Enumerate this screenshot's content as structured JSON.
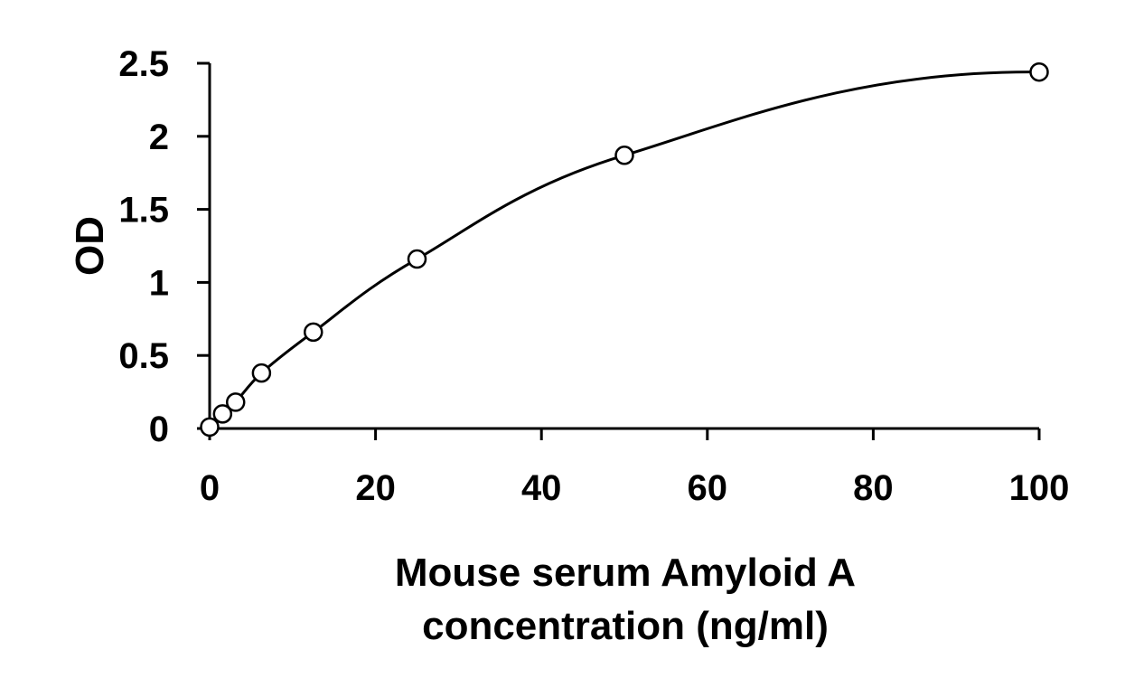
{
  "chart_data": {
    "type": "scatter",
    "title": "",
    "xlabel_lines": [
      "Mouse serum Amyloid A",
      "concentration (ng/ml)"
    ],
    "ylabel": "OD",
    "xlim": [
      0,
      100
    ],
    "ylim": [
      0,
      2.5
    ],
    "x_ticks": [
      0,
      20,
      40,
      60,
      80,
      100
    ],
    "y_ticks": [
      0,
      0.5,
      1,
      1.5,
      2,
      2.5
    ],
    "y_tick_labels": [
      "0",
      "0.5",
      "1",
      "1.5",
      "2",
      "2.5"
    ],
    "grid": false,
    "legend": "none",
    "colors": {
      "line": "#000000",
      "marker_fill": "#ffffff",
      "marker_stroke": "#000000"
    },
    "series": [
      {
        "x": [
          0,
          1.56,
          3.13,
          6.25,
          12.5,
          25,
          50,
          100
        ],
        "y": [
          0.01,
          0.1,
          0.18,
          0.38,
          0.66,
          1.16,
          1.87,
          2.44
        ],
        "marker": "open-circle",
        "fit": "smooth-curve"
      }
    ]
  }
}
